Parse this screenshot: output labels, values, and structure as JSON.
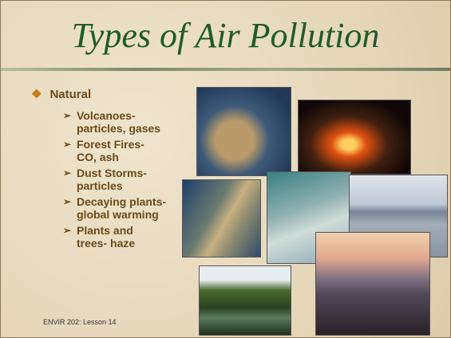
{
  "slide": {
    "title": "Types of Air Pollution",
    "heading": "Natural",
    "items": [
      [
        "Volcanoes-",
        "particles, gases"
      ],
      [
        "Forest Fires-",
        "CO, ash"
      ],
      [
        "Dust Storms-",
        "particles"
      ],
      [
        "Decaying plants-",
        "global warming"
      ],
      [
        "Plants and",
        "trees- haze"
      ]
    ],
    "footer": "ENVIR 202: Lesson 14"
  }
}
